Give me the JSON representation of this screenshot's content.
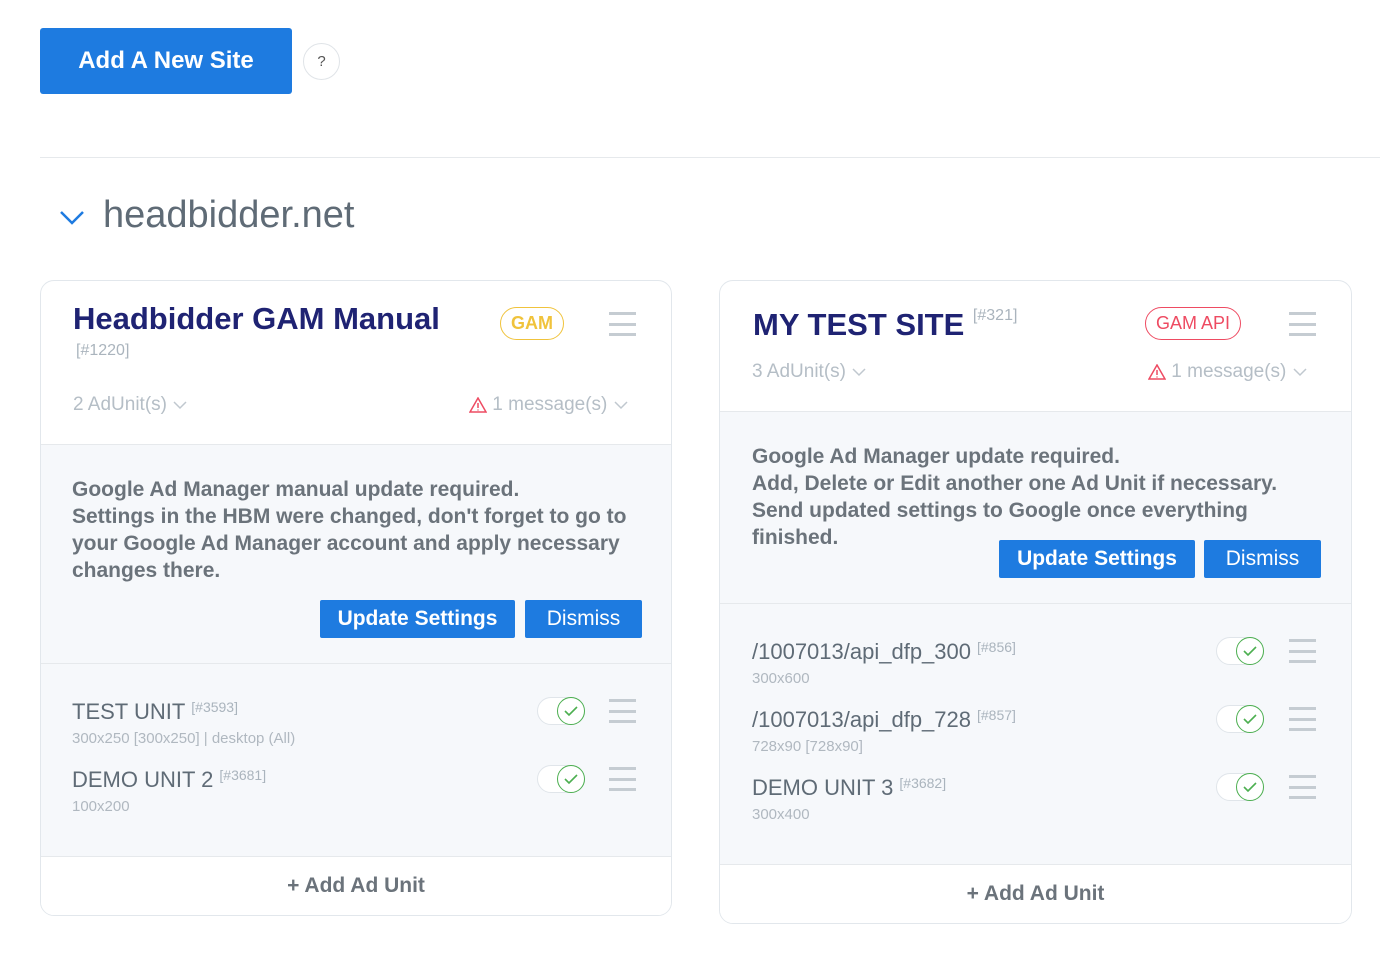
{
  "header": {
    "add_site_label": "Add A New Site",
    "help_label": "?"
  },
  "site": {
    "name": "headbidder.net"
  },
  "cards": [
    {
      "title": "Headbidder GAM Manual",
      "id": "[#1220]",
      "badge": "GAM",
      "badge_color": "#f0c33c",
      "adunits": "2 AdUnit(s)",
      "messages": "1 message(s)",
      "notice": {
        "heading": "Google Ad Manager manual update required.",
        "body": "Settings in the HBM were changed, don't forget to go to your Google Ad Manager account and apply necessary changes there.",
        "update_label": "Update Settings",
        "dismiss_label": "Dismiss"
      },
      "units": [
        {
          "name": "TEST UNIT",
          "id": "[#3593]",
          "sub": "300x250 [300x250] | desktop (All)",
          "enabled": true
        },
        {
          "name": "DEMO UNIT 2",
          "id": "[#3681]",
          "sub": "100x200",
          "enabled": true
        }
      ],
      "add_unit_label": "+ Add Ad Unit"
    },
    {
      "title": "MY TEST SITE",
      "id": "[#321]",
      "badge": "GAM API",
      "badge_color": "#ee4b62",
      "adunits": "3 AdUnit(s)",
      "messages": "1 message(s)",
      "notice": {
        "heading": "Google Ad Manager update required.",
        "body": "Add, Delete or Edit another one Ad Unit if necessary. Send updated settings to Google once everything finished.",
        "update_label": "Update Settings",
        "dismiss_label": "Dismiss"
      },
      "units": [
        {
          "name": "/1007013/api_dfp_300",
          "id": "[#856]",
          "sub": "300x600",
          "enabled": true
        },
        {
          "name": "/1007013/api_dfp_728",
          "id": "[#857]",
          "sub": "728x90 [728x90]",
          "enabled": true
        },
        {
          "name": "DEMO UNIT 3",
          "id": "[#3682]",
          "sub": "300x400",
          "enabled": true
        }
      ],
      "add_unit_label": "+ Add Ad Unit"
    }
  ]
}
